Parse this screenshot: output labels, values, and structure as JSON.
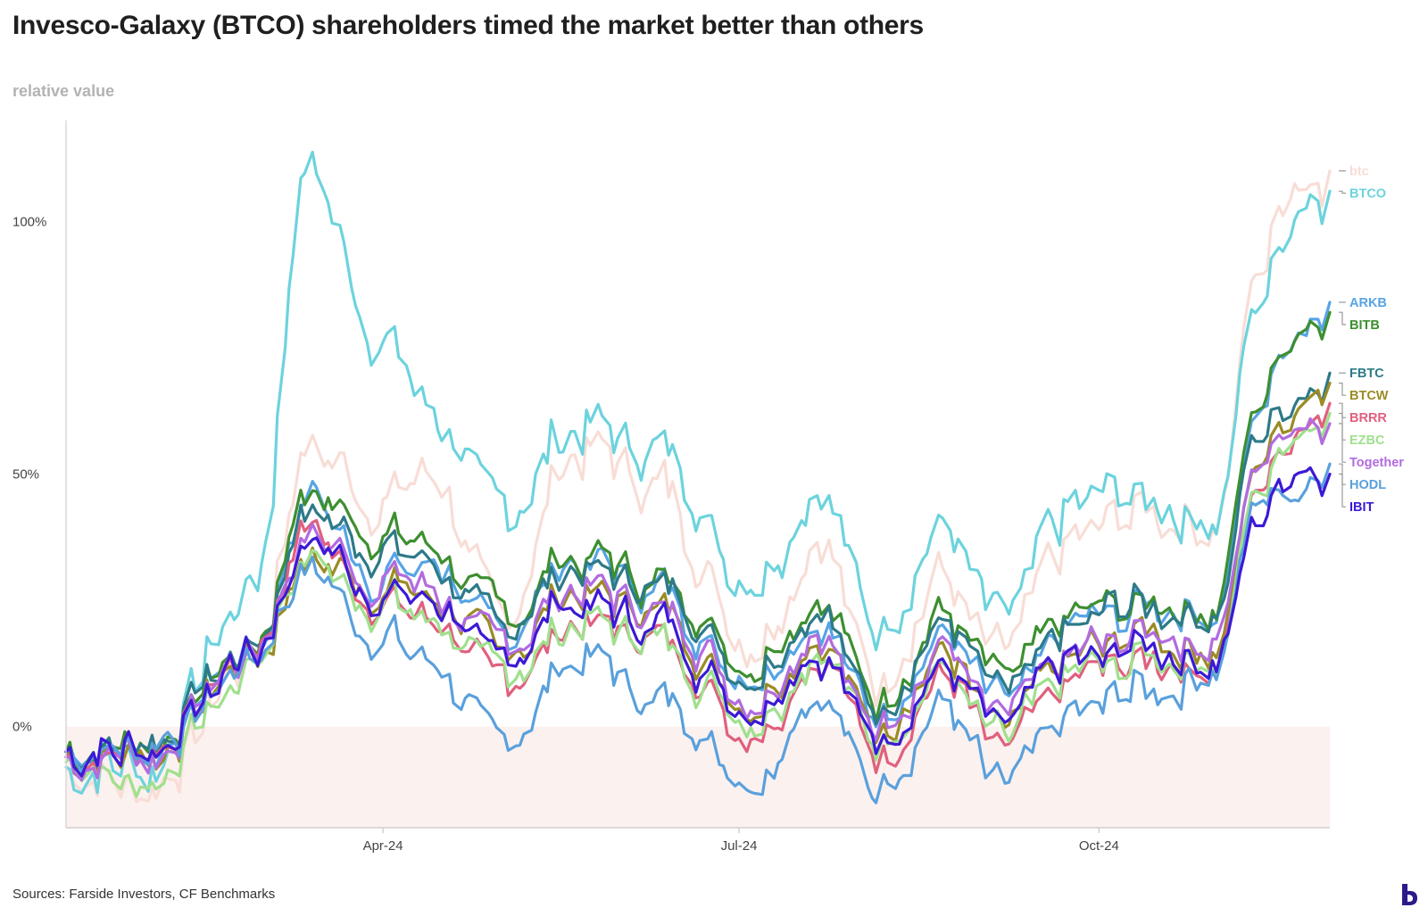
{
  "title": "Invesco-Galaxy (BTCO) shareholders timed the market better than others",
  "ylabel": "relative value",
  "source": "Sources: Farside Investors, CF Benchmarks",
  "chart_data": {
    "type": "line",
    "x_start": "2024-01-11",
    "x_end": "2024-11-29",
    "xlim": [
      "2024-01-11",
      "2024-11-29"
    ],
    "ylim": [
      -20,
      120
    ],
    "y_ticks": [
      0,
      50,
      100
    ],
    "y_tick_labels": [
      "0%",
      "50%",
      "100%"
    ],
    "x_ticks": [
      "2024-04-01",
      "2024-07-01",
      "2024-10-01"
    ],
    "x_tick_labels": [
      "Apr-24",
      "Jul-24",
      "Oct-24"
    ],
    "negative_band": true,
    "grid": false,
    "legend": "right end labels",
    "series": [
      {
        "name": "btc",
        "color": "#f8ddd6",
        "x": [
          "2024-01-11",
          "2024-02-01",
          "2024-02-29",
          "2024-03-13",
          "2024-04-01",
          "2024-04-15",
          "2024-05-01",
          "2024-05-21",
          "2024-06-10",
          "2024-07-05",
          "2024-07-22",
          "2024-08-05",
          "2024-08-23",
          "2024-09-06",
          "2024-09-27",
          "2024-10-15",
          "2024-10-31",
          "2024-11-12",
          "2024-11-22",
          "2024-11-29"
        ],
        "y": [
          -8,
          -12,
          15,
          55,
          45,
          50,
          20,
          55,
          48,
          18,
          38,
          10,
          30,
          12,
          38,
          43,
          40,
          93,
          112,
          110
        ]
      },
      {
        "name": "BTCO",
        "color": "#6cd3dd",
        "x": [
          "2024-01-11",
          "2024-02-01",
          "2024-02-29",
          "2024-03-13",
          "2024-04-01",
          "2024-04-15",
          "2024-05-01",
          "2024-05-21",
          "2024-06-10",
          "2024-07-05",
          "2024-07-22",
          "2024-08-05",
          "2024-08-23",
          "2024-09-06",
          "2024-09-27",
          "2024-10-15",
          "2024-10-31",
          "2024-11-12",
          "2024-11-22",
          "2024-11-29"
        ],
        "y": [
          -8,
          -8,
          28,
          110,
          78,
          62,
          42,
          60,
          55,
          30,
          48,
          20,
          40,
          20,
          44,
          45,
          42,
          85,
          105,
          106
        ]
      },
      {
        "name": "ARKB",
        "color": "#57a4e5",
        "x": [
          "2024-01-11",
          "2024-02-01",
          "2024-02-29",
          "2024-03-13",
          "2024-04-01",
          "2024-04-15",
          "2024-05-01",
          "2024-05-21",
          "2024-06-10",
          "2024-07-05",
          "2024-07-22",
          "2024-08-05",
          "2024-08-23",
          "2024-09-06",
          "2024-09-27",
          "2024-10-15",
          "2024-10-31",
          "2024-11-12",
          "2024-11-22",
          "2024-11-29"
        ],
        "y": [
          -5,
          -4,
          16,
          45,
          30,
          33,
          18,
          33,
          28,
          10,
          22,
          2,
          18,
          4,
          20,
          24,
          22,
          65,
          80,
          84
        ]
      },
      {
        "name": "BITB",
        "color": "#3d8f2f",
        "x": [
          "2024-01-11",
          "2024-02-01",
          "2024-02-29",
          "2024-03-13",
          "2024-04-01",
          "2024-04-15",
          "2024-05-01",
          "2024-05-21",
          "2024-06-10",
          "2024-07-05",
          "2024-07-22",
          "2024-08-05",
          "2024-08-23",
          "2024-09-06",
          "2024-09-27",
          "2024-10-15",
          "2024-10-31",
          "2024-11-12",
          "2024-11-22",
          "2024-11-29"
        ],
        "y": [
          -5,
          -4,
          17,
          46,
          38,
          34,
          22,
          33,
          29,
          14,
          26,
          6,
          22,
          8,
          22,
          25,
          23,
          66,
          80,
          82
        ]
      },
      {
        "name": "FBTC",
        "color": "#2d7a88",
        "x": [
          "2024-01-11",
          "2024-02-01",
          "2024-02-29",
          "2024-03-13",
          "2024-04-01",
          "2024-04-15",
          "2024-05-01",
          "2024-05-21",
          "2024-06-10",
          "2024-07-05",
          "2024-07-22",
          "2024-08-05",
          "2024-08-23",
          "2024-09-06",
          "2024-09-27",
          "2024-10-15",
          "2024-10-31",
          "2024-11-12",
          "2024-11-22",
          "2024-11-29"
        ],
        "y": [
          -5,
          -4,
          17,
          42,
          35,
          32,
          20,
          32,
          28,
          12,
          24,
          4,
          20,
          6,
          20,
          24,
          22,
          60,
          68,
          70
        ]
      },
      {
        "name": "BTCW",
        "color": "#9a8b25",
        "x": [
          "2024-01-11",
          "2024-02-01",
          "2024-02-29",
          "2024-03-13",
          "2024-04-01",
          "2024-04-15",
          "2024-05-01",
          "2024-05-21",
          "2024-06-10",
          "2024-07-05",
          "2024-07-22",
          "2024-08-05",
          "2024-08-23",
          "2024-09-06",
          "2024-09-27",
          "2024-10-15",
          "2024-10-31",
          "2024-11-12",
          "2024-11-22",
          "2024-11-29"
        ],
        "y": [
          -6,
          -5,
          14,
          33,
          28,
          25,
          14,
          27,
          22,
          6,
          18,
          0,
          14,
          0,
          14,
          18,
          16,
          52,
          66,
          68
        ]
      },
      {
        "name": "BRRR",
        "color": "#e0607e",
        "x": [
          "2024-01-11",
          "2024-02-01",
          "2024-02-29",
          "2024-03-13",
          "2024-04-01",
          "2024-04-15",
          "2024-05-01",
          "2024-05-21",
          "2024-06-10",
          "2024-07-05",
          "2024-07-22",
          "2024-08-05",
          "2024-08-23",
          "2024-09-06",
          "2024-09-27",
          "2024-10-15",
          "2024-10-31",
          "2024-11-12",
          "2024-11-22",
          "2024-11-29"
        ],
        "y": [
          -6,
          -5,
          15,
          40,
          25,
          22,
          8,
          21,
          17,
          0,
          14,
          -4,
          10,
          -6,
          10,
          13,
          12,
          48,
          62,
          64
        ]
      },
      {
        "name": "EZBC",
        "color": "#9fe08d",
        "x": [
          "2024-01-11",
          "2024-02-01",
          "2024-02-29",
          "2024-03-13",
          "2024-04-01",
          "2024-04-15",
          "2024-05-01",
          "2024-05-21",
          "2024-06-10",
          "2024-07-05",
          "2024-07-22",
          "2024-08-05",
          "2024-08-23",
          "2024-09-06",
          "2024-09-27",
          "2024-10-15",
          "2024-10-31",
          "2024-11-12",
          "2024-11-22",
          "2024-11-29"
        ],
        "y": [
          -7,
          -10,
          12,
          34,
          24,
          21,
          10,
          21,
          17,
          3,
          15,
          -3,
          11,
          -3,
          11,
          14,
          12,
          48,
          60,
          62
        ]
      },
      {
        "name": "Together",
        "color": "#b26be0",
        "x": [
          "2024-01-11",
          "2024-02-01",
          "2024-02-29",
          "2024-03-13",
          "2024-04-01",
          "2024-04-15",
          "2024-05-01",
          "2024-05-21",
          "2024-06-10",
          "2024-07-05",
          "2024-07-22",
          "2024-08-05",
          "2024-08-23",
          "2024-09-06",
          "2024-09-27",
          "2024-10-15",
          "2024-10-31",
          "2024-11-12",
          "2024-11-22",
          "2024-11-29"
        ],
        "y": [
          -6,
          -5,
          15,
          38,
          30,
          27,
          15,
          27,
          23,
          7,
          19,
          1,
          15,
          1,
          15,
          19,
          17,
          52,
          62,
          60
        ]
      },
      {
        "name": "HODL",
        "color": "#5aa0dc",
        "x": [
          "2024-01-11",
          "2024-02-01",
          "2024-02-29",
          "2024-03-13",
          "2024-04-01",
          "2024-04-15",
          "2024-05-01",
          "2024-05-21",
          "2024-06-10",
          "2024-07-05",
          "2024-07-22",
          "2024-08-05",
          "2024-08-23",
          "2024-09-06",
          "2024-09-27",
          "2024-10-15",
          "2024-10-31",
          "2024-11-12",
          "2024-11-22",
          "2024-11-29"
        ],
        "y": [
          -5,
          -4,
          14,
          30,
          18,
          12,
          -4,
          14,
          6,
          -10,
          8,
          -13,
          4,
          -13,
          2,
          8,
          10,
          46,
          48,
          52
        ]
      },
      {
        "name": "IBIT",
        "color": "#3c19d6",
        "x": [
          "2024-01-11",
          "2024-02-01",
          "2024-02-29",
          "2024-03-13",
          "2024-04-01",
          "2024-04-15",
          "2024-05-01",
          "2024-05-21",
          "2024-06-10",
          "2024-07-05",
          "2024-07-22",
          "2024-08-05",
          "2024-08-23",
          "2024-09-06",
          "2024-09-27",
          "2024-10-15",
          "2024-10-31",
          "2024-11-12",
          "2024-11-22",
          "2024-11-29"
        ],
        "y": [
          -5,
          -4,
          15,
          36,
          27,
          25,
          12,
          25,
          20,
          4,
          16,
          -2,
          12,
          -2,
          12,
          16,
          14,
          42,
          54,
          50
        ]
      }
    ],
    "end_labels": [
      "btc",
      "BTCO",
      "ARKB",
      "BITB",
      "FBTC",
      "BTCW",
      "BRRR",
      "EZBC",
      "Together",
      "HODL",
      "IBIT"
    ]
  }
}
